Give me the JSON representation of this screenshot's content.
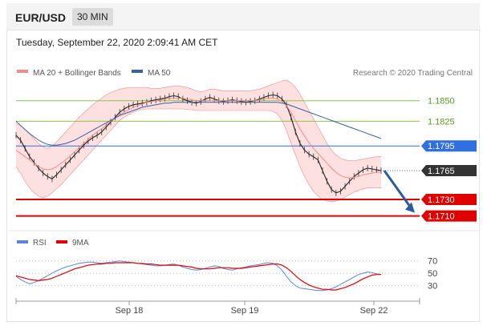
{
  "header": {
    "symbol": "EUR/USD",
    "timeframe": "30 MIN",
    "datetime": "Tuesday, September 22, 2020 2:09:41 AM CET"
  },
  "colors": {
    "bollinger": "#f28b8b",
    "bollinger_fill": "#fde0e0",
    "ma50": "#3a60a0",
    "resistance": "#8bc34a",
    "pivot": "#2f6fe0",
    "support": "#e00000",
    "current": "#333333",
    "rsi": "#5b84e0",
    "rsi_ma": "#e00000",
    "arrow": "#2c5a9e"
  },
  "chart_data": [
    {
      "type": "line",
      "name": "price",
      "legend": [
        {
          "name": "MA 20 + Bollinger Bands",
          "color": "#f28b8b"
        },
        {
          "name": "MA 50",
          "color": "#3a60a0"
        }
      ],
      "copyright": "Research © 2020 Trading Central",
      "x_ticks": [
        "Sep 18",
        "Sep 19",
        "Sep 22"
      ],
      "ylim": [
        1.1695,
        1.1875
      ],
      "levels": [
        {
          "label": "1.1850",
          "value": 1.185,
          "kind": "resistance"
        },
        {
          "label": "1.1825",
          "value": 1.1825,
          "kind": "resistance"
        },
        {
          "label": "1.1795",
          "value": 1.1795,
          "kind": "pivot"
        },
        {
          "label": "1.1765",
          "value": 1.1765,
          "kind": "current"
        },
        {
          "label": "1.1730",
          "value": 1.173,
          "kind": "support"
        },
        {
          "label": "1.1710",
          "value": 1.171,
          "kind": "support"
        }
      ],
      "close": [
        1.1808,
        1.1802,
        1.1792,
        1.1782,
        1.1775,
        1.1768,
        1.1762,
        1.1758,
        1.1755,
        1.176,
        1.1766,
        1.1772,
        1.1778,
        1.1784,
        1.179,
        1.1796,
        1.1801,
        1.1805,
        1.1808,
        1.1812,
        1.1818,
        1.1824,
        1.183,
        1.1836,
        1.184,
        1.1843,
        1.1845,
        1.1846,
        1.1847,
        1.1848,
        1.185,
        1.1851,
        1.1852,
        1.1853,
        1.1855,
        1.1856,
        1.1855,
        1.1852,
        1.185,
        1.1848,
        1.1847,
        1.1849,
        1.1852,
        1.1854,
        1.1852,
        1.185,
        1.1849,
        1.185,
        1.1851,
        1.185,
        1.1849,
        1.1848,
        1.1849,
        1.185,
        1.1852,
        1.1854,
        1.1856,
        1.1857,
        1.1856,
        1.1852,
        1.1845,
        1.183,
        1.1812,
        1.1798,
        1.179,
        1.1785,
        1.1782,
        1.1778,
        1.1765,
        1.1752,
        1.1742,
        1.1738,
        1.174,
        1.1746,
        1.1752,
        1.1758,
        1.1762,
        1.1766,
        1.1768,
        1.1767,
        1.1766,
        1.1765
      ],
      "ma20": [
        1.179,
        1.1786,
        1.1782,
        1.1778,
        1.1774,
        1.177,
        1.1767,
        1.1766,
        1.1767,
        1.177,
        1.1774,
        1.1778,
        1.1783,
        1.1788,
        1.1793,
        1.1798,
        1.1803,
        1.1808,
        1.1812,
        1.1816,
        1.182,
        1.1825,
        1.1829,
        1.1833,
        1.1836,
        1.1839,
        1.1842,
        1.1844,
        1.1846,
        1.1848,
        1.1849,
        1.185,
        1.1851,
        1.1852,
        1.1853,
        1.1853,
        1.1853,
        1.1853,
        1.1852,
        1.1851,
        1.185,
        1.185,
        1.185,
        1.185,
        1.185,
        1.185,
        1.185,
        1.185,
        1.185,
        1.185,
        1.185,
        1.185,
        1.185,
        1.185,
        1.1851,
        1.1852,
        1.1853,
        1.1853,
        1.1852,
        1.1849,
        1.1844,
        1.1836,
        1.1826,
        1.1816,
        1.1807,
        1.1799,
        1.1792,
        1.1786,
        1.178,
        1.1774,
        1.1768,
        1.1763,
        1.1759,
        1.1757,
        1.1756,
        1.1757,
        1.1758,
        1.176,
        1.1761,
        1.1762,
        1.1763,
        1.1763
      ],
      "ma50": [
        1.1825,
        1.182,
        1.1815,
        1.181,
        1.1806,
        1.1802,
        1.1799,
        1.1797,
        1.1796,
        1.1796,
        1.1797,
        1.1798,
        1.18,
        1.1802,
        1.1805,
        1.1808,
        1.1811,
        1.1814,
        1.1817,
        1.182,
        1.1823,
        1.1826,
        1.1829,
        1.1832,
        1.1834,
        1.1836,
        1.1838,
        1.184,
        1.1842,
        1.1843,
        1.1844,
        1.1845,
        1.1846,
        1.1847,
        1.1847,
        1.1848,
        1.1848,
        1.1848,
        1.1848,
        1.1848,
        1.1848,
        1.1848,
        1.1848,
        1.1848,
        1.1848,
        1.1848,
        1.1848,
        1.1848,
        1.1848,
        1.1848,
        1.1848,
        1.1848,
        1.1848,
        1.1848,
        1.1848,
        1.1848,
        1.1848,
        1.1848,
        1.1848,
        1.1847,
        1.1846,
        1.1844,
        1.1842,
        1.184,
        1.1838,
        1.1836,
        1.1834,
        1.1832,
        1.183,
        1.1828,
        1.1826,
        1.1824,
        1.1822,
        1.182,
        1.1818,
        1.1816,
        1.1814,
        1.1812,
        1.181,
        1.1808,
        1.1806,
        1.1804
      ],
      "upper": [
        1.1822,
        1.182,
        1.1815,
        1.181,
        1.1804,
        1.1798,
        1.1794,
        1.1792,
        1.1795,
        1.18,
        1.1806,
        1.1812,
        1.1818,
        1.1824,
        1.183,
        1.1835,
        1.184,
        1.1845,
        1.1849,
        1.1853,
        1.1857,
        1.186,
        1.1862,
        1.1864,
        1.1865,
        1.1866,
        1.1866,
        1.1866,
        1.1866,
        1.1866,
        1.1865,
        1.1865,
        1.1865,
        1.1866,
        1.1867,
        1.1868,
        1.1868,
        1.1867,
        1.1866,
        1.1864,
        1.1862,
        1.1861,
        1.1862,
        1.1864,
        1.1864,
        1.1863,
        1.1862,
        1.1862,
        1.1862,
        1.1862,
        1.1862,
        1.1862,
        1.1862,
        1.1863,
        1.1864,
        1.1866,
        1.1868,
        1.187,
        1.1872,
        1.1874,
        1.1875,
        1.1872,
        1.1866,
        1.1858,
        1.1848,
        1.1838,
        1.1828,
        1.1818,
        1.1808,
        1.1798,
        1.179,
        1.1784,
        1.178,
        1.1778,
        1.1777,
        1.1777,
        1.1778,
        1.1779,
        1.178,
        1.1781,
        1.1782,
        1.1782
      ],
      "lower": [
        1.177,
        1.1762,
        1.1752,
        1.1744,
        1.1738,
        1.1734,
        1.1732,
        1.1734,
        1.1738,
        1.1743,
        1.1748,
        1.1754,
        1.176,
        1.1766,
        1.1772,
        1.1778,
        1.1784,
        1.179,
        1.1796,
        1.1802,
        1.1808,
        1.1814,
        1.182,
        1.1826,
        1.183,
        1.1833,
        1.1836,
        1.1838,
        1.1839,
        1.184,
        1.184,
        1.184,
        1.184,
        1.184,
        1.184,
        1.184,
        1.184,
        1.184,
        1.1839,
        1.1839,
        1.1838,
        1.1838,
        1.1838,
        1.1838,
        1.1838,
        1.1838,
        1.1838,
        1.1838,
        1.1838,
        1.1838,
        1.1838,
        1.1838,
        1.1838,
        1.1838,
        1.1838,
        1.1838,
        1.1838,
        1.1837,
        1.1834,
        1.1826,
        1.1814,
        1.1798,
        1.1784,
        1.177,
        1.1758,
        1.1748,
        1.174,
        1.1734,
        1.173,
        1.1728,
        1.1727,
        1.1728,
        1.173,
        1.1733,
        1.1736,
        1.1739,
        1.1741,
        1.1743,
        1.1744,
        1.1744,
        1.1744,
        1.1744
      ]
    },
    {
      "type": "line",
      "name": "rsi-panel",
      "legend": [
        {
          "name": "RSI",
          "color": "#5b84e0"
        },
        {
          "name": "9MA",
          "color": "#e00000"
        }
      ],
      "ylim": [
        10,
        80
      ],
      "levels": [
        {
          "label": "70",
          "value": 70
        },
        {
          "label": "50",
          "value": 50
        },
        {
          "label": "30",
          "value": 30
        }
      ],
      "rsi": [
        45,
        40,
        36,
        33,
        35,
        38,
        42,
        46,
        50,
        54,
        57,
        60,
        62,
        64,
        66,
        67,
        68,
        68,
        67,
        66,
        67,
        68,
        69,
        70,
        69,
        68,
        67,
        66,
        65,
        64,
        63,
        62,
        62,
        63,
        64,
        65,
        63,
        60,
        58,
        56,
        55,
        56,
        58,
        60,
        62,
        61,
        58,
        56,
        55,
        57,
        59,
        60,
        62,
        63,
        64,
        66,
        67,
        66,
        62,
        55,
        45,
        36,
        30,
        26,
        25,
        24,
        23,
        22,
        22,
        23,
        25,
        28,
        32,
        36,
        40,
        44,
        48,
        50,
        52,
        51,
        49,
        48
      ],
      "ma": [
        46,
        44,
        42,
        40,
        39,
        38,
        39,
        40,
        42,
        45,
        48,
        51,
        54,
        57,
        59,
        61,
        63,
        64,
        65,
        65,
        66,
        66,
        67,
        67,
        67,
        67,
        67,
        66,
        66,
        65,
        65,
        64,
        63,
        63,
        63,
        63,
        63,
        62,
        61,
        60,
        58,
        57,
        57,
        57,
        58,
        59,
        59,
        59,
        58,
        58,
        58,
        59,
        60,
        61,
        62,
        63,
        64,
        65,
        65,
        63,
        59,
        53,
        46,
        40,
        35,
        31,
        28,
        26,
        24,
        24,
        23,
        23,
        25,
        27,
        30,
        33,
        37,
        41,
        44,
        47,
        48,
        48
      ]
    }
  ]
}
